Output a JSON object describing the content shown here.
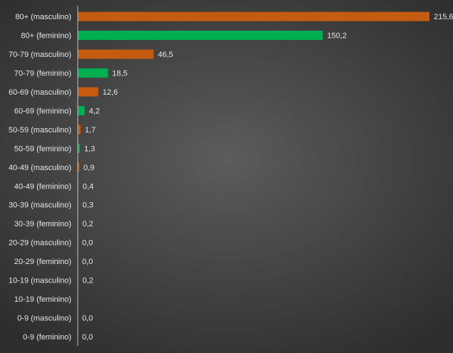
{
  "chart_data": {
    "type": "bar",
    "orientation": "horizontal",
    "title": "",
    "xlabel": "",
    "ylabel": "",
    "grid": false,
    "legend": "none",
    "colors": {
      "masculino": "#c55a11",
      "feminino": "#00b050"
    },
    "categories": [
      "80+ (masculino)",
      "80+ (feminino)",
      "70-79 (masculino)",
      "70-79 (feminino)",
      "60-69 (masculino)",
      "60-69 (feminino)",
      "50-59 (masculino)",
      "50-59 (feminino)",
      "40-49 (masculino)",
      "40-49 (feminino)",
      "30-39 (masculino)",
      "30-39 (feminino)",
      "20-29 (masculino)",
      "20-29 (feminino)",
      "10-19 (masculino)",
      "10-19 (feminino)",
      "0-9 (masculino)",
      "0-9 (feminino)"
    ],
    "values": [
      215.6,
      150.2,
      46.5,
      18.5,
      12.6,
      4.2,
      1.7,
      1.3,
      0.9,
      0.4,
      0.3,
      0.2,
      0.0,
      0.0,
      0.2,
      null,
      0.0,
      0.0
    ],
    "data_labels": [
      "215,6",
      "150,2",
      "46,5",
      "18,5",
      "12,6",
      "4,2",
      "1,7",
      "1,3",
      "0,9",
      "0,4",
      "0,3",
      "0,2",
      "0,0",
      "0,0",
      "0,2",
      "",
      "0,0",
      "0,0"
    ],
    "xlim": [
      0,
      215.6
    ]
  }
}
